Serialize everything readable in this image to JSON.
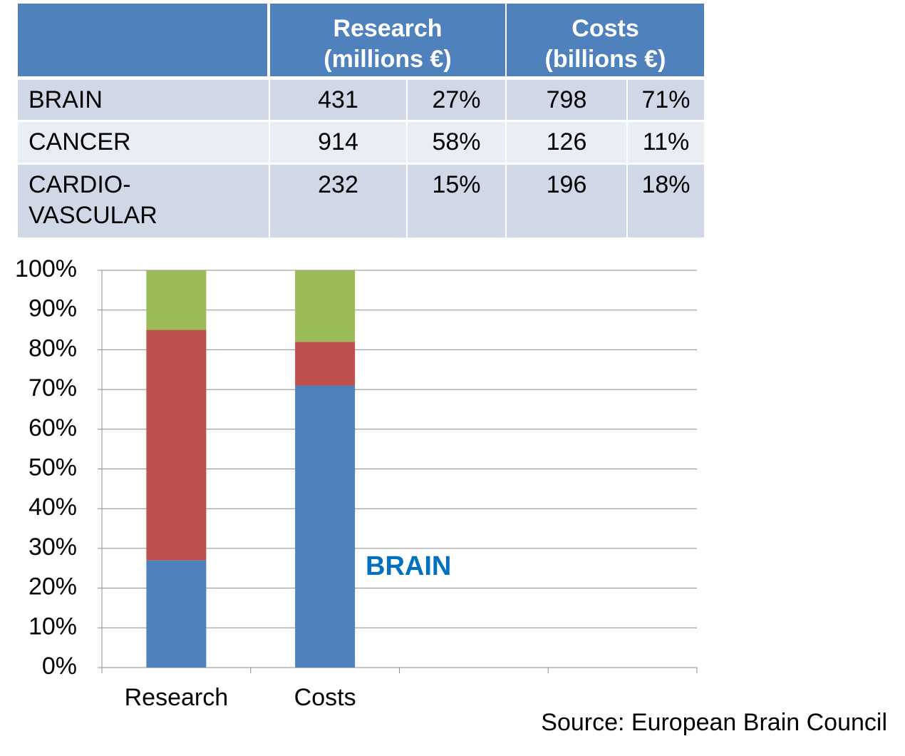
{
  "table": {
    "header": [
      [
        "Research",
        "(millions €)"
      ],
      [
        "Costs",
        "(billions €)"
      ]
    ],
    "rows": [
      [
        [
          "BRAIN"
        ],
        431,
        "27%",
        798,
        "71%"
      ],
      [
        [
          "CANCER"
        ],
        914,
        "58%",
        126,
        "11%"
      ],
      [
        [
          "CARDIO-",
          "VASCULAR"
        ],
        232,
        "15%",
        196,
        "18%"
      ]
    ]
  },
  "chart_data": {
    "type": "stacked_bar",
    "categories": [
      "Research",
      "Costs",
      null,
      null
    ],
    "series": [
      {
        "color": "#4f81bd",
        "values": [
          27,
          71,
          null,
          null
        ]
      },
      {
        "color": "#c0504d",
        "values": [
          58,
          11,
          null,
          null
        ]
      },
      {
        "color": "#9bbb59",
        "values": [
          15,
          18,
          null,
          null
        ]
      }
    ],
    "ylim": [
      0,
      100
    ],
    "yticks": [
      {
        "value": 0,
        "label": "0%"
      },
      {
        "value": 10,
        "label": "10%"
      },
      {
        "value": 20,
        "label": "20%"
      },
      {
        "value": 30,
        "label": "30%"
      },
      {
        "value": 40,
        "label": "40%"
      },
      {
        "value": 50,
        "label": "50%"
      },
      {
        "value": 60,
        "label": "60%"
      },
      {
        "value": 70,
        "label": "70%"
      },
      {
        "value": 80,
        "label": "80%"
      },
      {
        "value": 90,
        "label": "90%"
      },
      {
        "value": 100,
        "label": "100%"
      }
    ],
    "grid": true,
    "annotation": {
      "text": "BRAIN",
      "color": "#0070c0"
    }
  },
  "source": "Source: European Brain Council"
}
